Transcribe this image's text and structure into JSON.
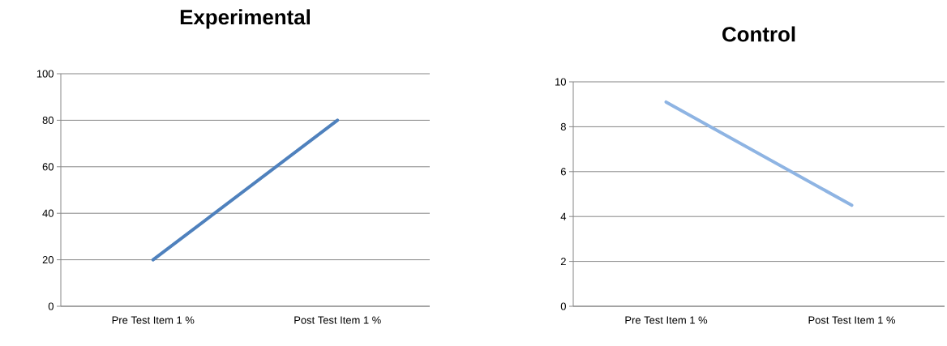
{
  "chart_data": [
    {
      "type": "line",
      "title": "Experimental",
      "categories": [
        "Pre Test Item 1 %",
        "Post Test Item 1 %"
      ],
      "values": [
        20,
        80
      ],
      "color": "#4f81bd",
      "ylim": [
        0,
        100
      ],
      "yticks": [
        0,
        20,
        40,
        60,
        80,
        100
      ],
      "grid": "y",
      "marker": "none"
    },
    {
      "type": "line",
      "title": "Control",
      "categories": [
        "Pre Test Item 1 %",
        "Post Test Item 1 %"
      ],
      "values": [
        9.1,
        4.5
      ],
      "color": "#8eb4e3",
      "ylim": [
        0,
        10
      ],
      "yticks": [
        0,
        2,
        4,
        6,
        8,
        10
      ],
      "grid": "y",
      "marker": "none"
    }
  ]
}
